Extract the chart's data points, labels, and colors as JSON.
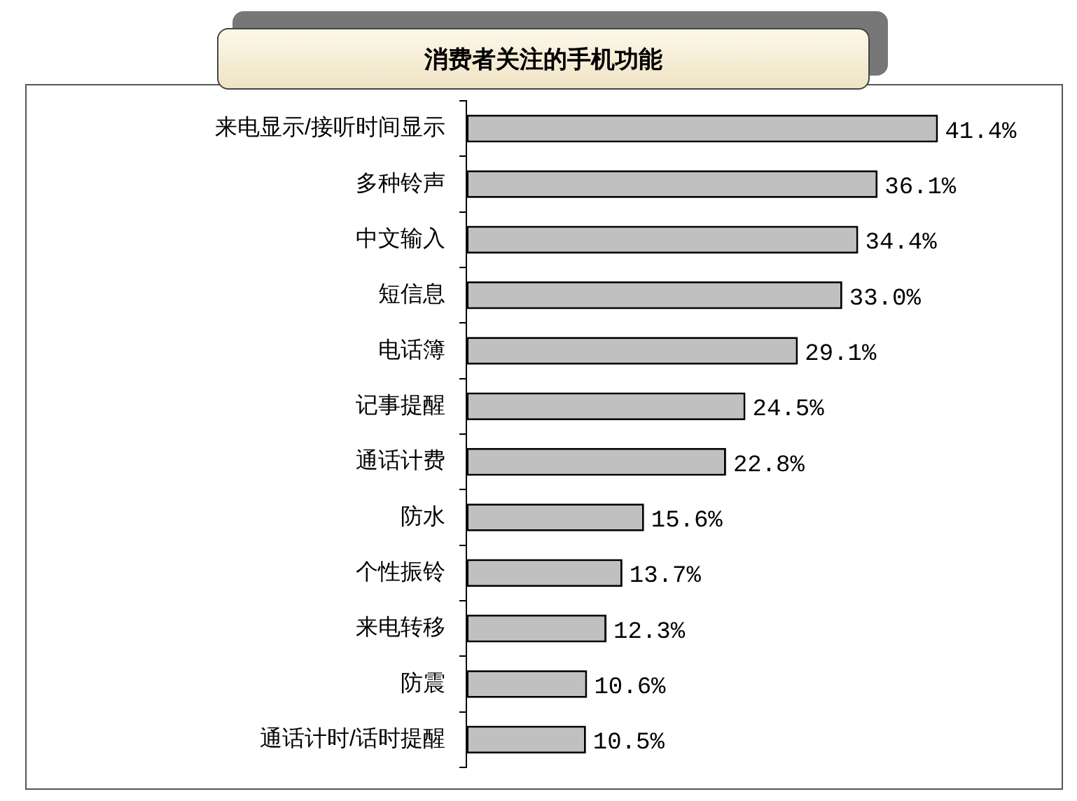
{
  "chart_data": {
    "type": "bar",
    "orientation": "horizontal",
    "title": "消费者关注的手机功能",
    "categories": [
      "来电显示/接听时间显示",
      "多种铃声",
      "中文输入",
      "短信息",
      "电话簿",
      "记事提醒",
      "通话计费",
      "防水",
      "个性振铃",
      "来电转移",
      "防震",
      "通话计时/话时提醒"
    ],
    "values": [
      41.4,
      36.1,
      34.4,
      33.0,
      29.1,
      24.5,
      22.8,
      15.6,
      13.7,
      12.3,
      10.6,
      10.5
    ],
    "value_labels": [
      "41.4%",
      "36.1%",
      "34.4%",
      "33.0%",
      "29.1%",
      "24.5%",
      "22.8%",
      "15.6%",
      "13.7%",
      "12.3%",
      "10.6%",
      "10.5%"
    ],
    "color": "#c0c0c0",
    "tick_labels": "y",
    "legend": false
  }
}
